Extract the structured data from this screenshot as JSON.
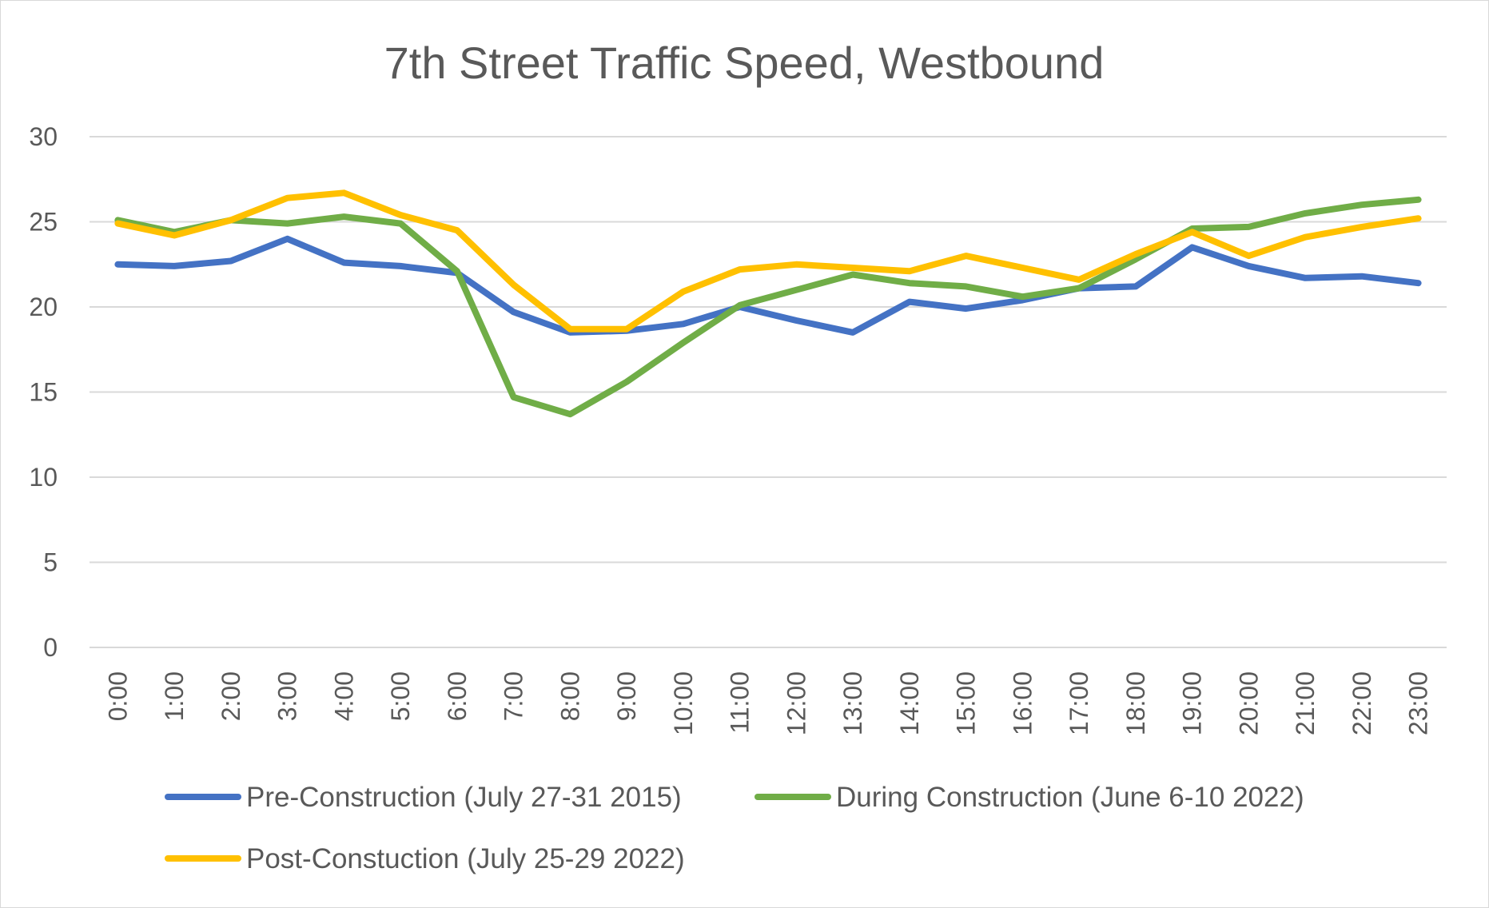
{
  "chart_data": {
    "type": "line",
    "title": "7th Street Traffic Speed, Westbound",
    "xlabel": "",
    "ylabel": "",
    "ylim": [
      0,
      30
    ],
    "yticks": [
      0,
      5,
      10,
      15,
      20,
      25,
      30
    ],
    "ytick_labels": [
      "0",
      "5",
      "10",
      "15",
      "20",
      "25",
      "30"
    ],
    "grid": true,
    "legend_position": "bottom",
    "categories": [
      "0:00",
      "1:00",
      "2:00",
      "3:00",
      "4:00",
      "5:00",
      "6:00",
      "7:00",
      "8:00",
      "9:00",
      "10:00",
      "11:00",
      "12:00",
      "13:00",
      "14:00",
      "15:00",
      "16:00",
      "17:00",
      "18:00",
      "19:00",
      "20:00",
      "21:00",
      "22:00",
      "23:00"
    ],
    "series": [
      {
        "name": "Pre-Construction (July 27-31 2015)",
        "color": "#4472c4",
        "values": [
          22.5,
          22.4,
          22.7,
          24.0,
          22.6,
          22.4,
          22.0,
          19.7,
          18.5,
          18.6,
          19.0,
          20.0,
          19.2,
          18.5,
          20.3,
          19.9,
          20.4,
          21.1,
          21.2,
          23.5,
          22.4,
          21.7,
          21.8,
          21.4
        ]
      },
      {
        "name": "During Construction (June 6-10 2022)",
        "color": "#70ad47",
        "values": [
          25.1,
          24.4,
          25.1,
          24.9,
          25.3,
          24.9,
          22.1,
          14.7,
          13.7,
          15.6,
          17.9,
          20.1,
          21.0,
          21.9,
          21.4,
          21.2,
          20.6,
          21.1,
          22.8,
          24.6,
          24.7,
          25.5,
          26.0,
          26.3
        ]
      },
      {
        "name": "Post-Constuction (July 25-29 2022)",
        "color": "#ffc000",
        "values": [
          24.9,
          24.2,
          25.1,
          26.4,
          26.7,
          25.4,
          24.5,
          21.3,
          18.7,
          18.7,
          20.9,
          22.2,
          22.5,
          22.3,
          22.1,
          23.0,
          22.3,
          21.6,
          23.1,
          24.4,
          23.0,
          24.1,
          24.7,
          25.2
        ]
      }
    ]
  }
}
